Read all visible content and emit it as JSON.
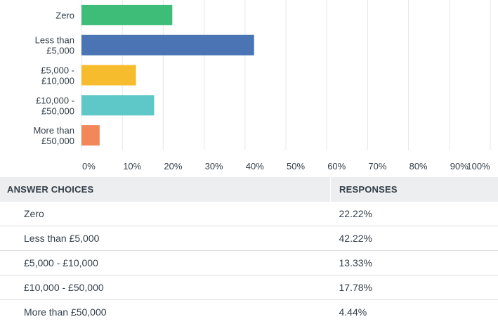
{
  "chart_data": {
    "type": "bar",
    "orientation": "horizontal",
    "categories": [
      [
        "Zero"
      ],
      [
        "Less than",
        "£5,000"
      ],
      [
        "£5,000 -",
        "£10,000"
      ],
      [
        "£10,000 -",
        "£50,000"
      ],
      [
        "More than",
        "£50,000"
      ]
    ],
    "values": [
      22.22,
      42.22,
      13.33,
      17.78,
      4.44
    ],
    "colors": [
      "#3dbd78",
      "#4a74b4",
      "#f7bb2e",
      "#5ec7c7",
      "#f2875a"
    ],
    "xlim": [
      0,
      100
    ],
    "ticks": [
      "0%",
      "10%",
      "20%",
      "30%",
      "40%",
      "50%",
      "60%",
      "70%",
      "80%",
      "90%",
      "100%"
    ],
    "grid": true
  },
  "table": {
    "headers": [
      "ANSWER CHOICES",
      "RESPONSES"
    ],
    "rows": [
      {
        "choice": "Zero",
        "response": "22.22%"
      },
      {
        "choice": "Less than £5,000",
        "response": "42.22%"
      },
      {
        "choice": "£5,000 - £10,000",
        "response": "13.33%"
      },
      {
        "choice": "£10,000 - £50,000",
        "response": "17.78%"
      },
      {
        "choice": "More than £50,000",
        "response": "4.44%"
      }
    ]
  }
}
